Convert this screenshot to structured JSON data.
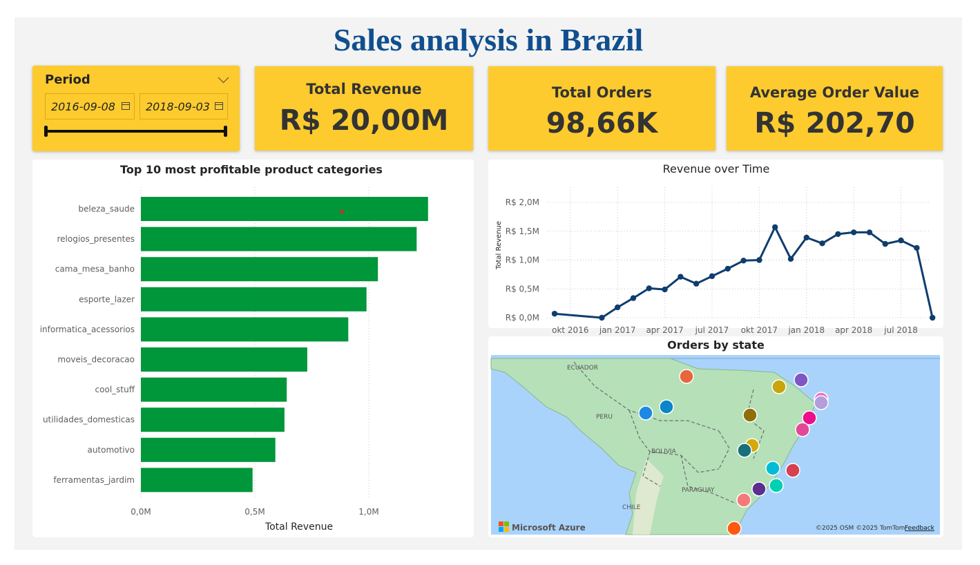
{
  "header": {
    "title": "Sales analysis in Brazil"
  },
  "slicer": {
    "label": "Period",
    "start_date": "2016-09-08",
    "end_date": "2018-09-03"
  },
  "kpis": {
    "revenue": {
      "label": "Total Revenue",
      "value": "R$ 20,00M"
    },
    "orders": {
      "label": "Total Orders",
      "value": "98,66K"
    },
    "aov": {
      "label": "Average Order Value",
      "value": "R$ 202,70"
    }
  },
  "colors": {
    "card_bg": "#fdcb2e",
    "bar": "#00963a",
    "line": "#0f3d6e",
    "title": "#104f8f"
  },
  "chart_data": [
    {
      "type": "bar",
      "orientation": "horizontal",
      "title": "Top 10 most profitable product categories",
      "xlabel": "Total Revenue",
      "categories": [
        "beleza_saude",
        "relogios_presentes",
        "cama_mesa_banho",
        "esporte_lazer",
        "informatica_acessorios",
        "moveis_decoracao",
        "cool_stuff",
        "utilidades_domesticas",
        "automotivo",
        "ferramentas_jardim"
      ],
      "values": [
        1.26,
        1.21,
        1.04,
        0.99,
        0.91,
        0.73,
        0.64,
        0.63,
        0.59,
        0.49
      ],
      "unit": "M",
      "xlim": [
        0,
        1.4
      ],
      "xticks": [
        {
          "v": 0,
          "label": "0,0M"
        },
        {
          "v": 0.5,
          "label": "0,5M"
        },
        {
          "v": 1.0,
          "label": "1,0M"
        }
      ],
      "grid": true
    },
    {
      "type": "line",
      "title": "Revenue over Time",
      "ylabel": "Total Revenue",
      "x": [
        "2016-09",
        "2016-12",
        "2017-01",
        "2017-02",
        "2017-03",
        "2017-04",
        "2017-05",
        "2017-06",
        "2017-07",
        "2017-08",
        "2017-09",
        "2017-10",
        "2017-11",
        "2017-12",
        "2018-01",
        "2018-02",
        "2018-03",
        "2018-04",
        "2018-05",
        "2018-06",
        "2018-07",
        "2018-08",
        "2018-09"
      ],
      "values": [
        0.07,
        0.0,
        0.18,
        0.34,
        0.51,
        0.49,
        0.71,
        0.59,
        0.72,
        0.85,
        0.99,
        1.0,
        1.57,
        1.02,
        1.39,
        1.29,
        1.45,
        1.48,
        1.48,
        1.28,
        1.34,
        1.21,
        0.0
      ],
      "unit": "M",
      "ylim": [
        0,
        2.0
      ],
      "yticks": [
        {
          "v": 0,
          "label": "R$ 0,0M"
        },
        {
          "v": 0.5,
          "label": "R$ 0,5M"
        },
        {
          "v": 1.0,
          "label": "R$ 1,0M"
        },
        {
          "v": 1.5,
          "label": "R$ 1,5M"
        },
        {
          "v": 2.0,
          "label": "R$ 2,0M"
        }
      ],
      "xticks": [
        {
          "v": "2016-10",
          "label": "okt 2016"
        },
        {
          "v": "2017-01",
          "label": "jan 2017"
        },
        {
          "v": "2017-04",
          "label": "apr 2017"
        },
        {
          "v": "2017-07",
          "label": "jul 2017"
        },
        {
          "v": "2017-10",
          "label": "okt 2017"
        },
        {
          "v": "2018-01",
          "label": "jan 2018"
        },
        {
          "v": "2018-04",
          "label": "apr 2018"
        },
        {
          "v": "2018-07",
          "label": "jul 2018"
        }
      ],
      "grid": true
    }
  ],
  "map": {
    "title": "Orders by state",
    "labels": {
      "ecuador": "ECUADOR",
      "peru": "PERU",
      "bolivia": "BOLIVIA",
      "paraguay": "PARAGUAY",
      "chile": "CHILE"
    },
    "brand": "Microsoft Azure",
    "attribution": "©2025 OSM  ©2025 TomTom",
    "feedback": "Feedback",
    "marker_colors": [
      "#e8663c",
      "#7e57c2",
      "#c9a40a",
      "#f06ec0",
      "#b39ddb",
      "#1e88e5",
      "#0a86c9",
      "#8d6e0a",
      "#ec0f8c",
      "#e24896",
      "#d4a90a",
      "#17707a",
      "#00bcd4",
      "#d6404f",
      "#00d1b2",
      "#5b2f8f",
      "#f47a7a",
      "#ff5a10"
    ]
  }
}
